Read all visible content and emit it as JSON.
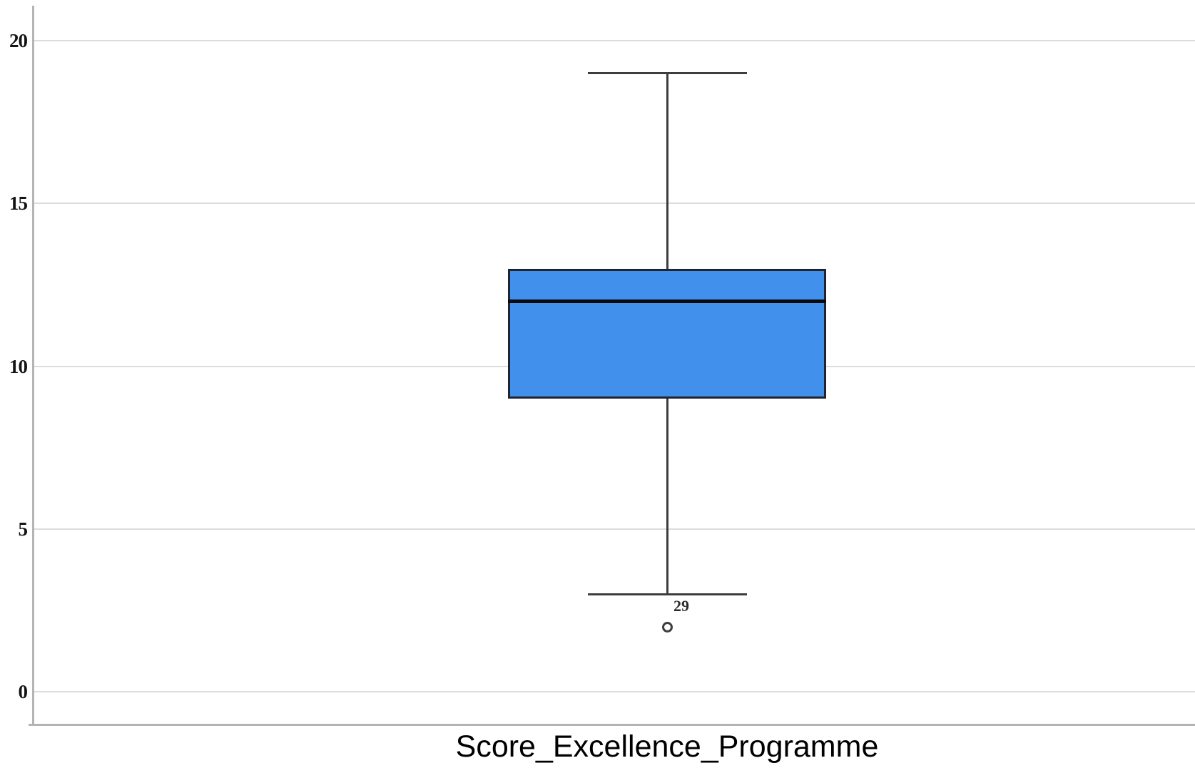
{
  "chart_data": {
    "type": "boxplot",
    "title": "",
    "xlabel": "Score_Excellence_Programme",
    "ylabel": "",
    "ylim": [
      -2,
      21
    ],
    "yticks": [
      0,
      5,
      10,
      15,
      20
    ],
    "grid": true,
    "legend": false,
    "series": [
      {
        "name": "Score_Excellence_Programme",
        "whisker_low": 3,
        "q1": 9,
        "median": 12,
        "q3": 13,
        "whisker_high": 19,
        "outliers": [
          {
            "value": 2,
            "label": "29"
          }
        ]
      }
    ],
    "colors": {
      "box_fill": "#4191ec",
      "box_border": "#1f2430",
      "median": "#0a0a0a",
      "whisker": "#3d3d3d",
      "gridline": "#dcdcdc",
      "axis": "#b4b4b4",
      "tick_text": "#141414"
    }
  }
}
